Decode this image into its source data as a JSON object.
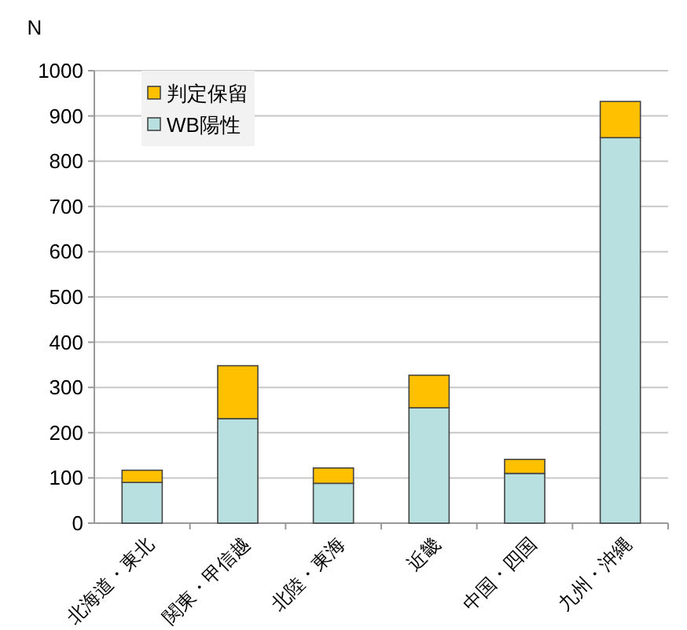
{
  "chart_data": {
    "type": "bar",
    "ylabel": "N",
    "stacked": true,
    "grid": "y",
    "legend": "top left",
    "categories": [
      "北海道・東北",
      "関東・甲信越",
      "北陸・東海",
      "近畿",
      "中国・四国",
      "九州・沖縄"
    ],
    "ylim": [
      0,
      1000
    ],
    "yticks": [
      0,
      100,
      200,
      300,
      400,
      500,
      600,
      700,
      800,
      900,
      1000
    ],
    "series": [
      {
        "name": "WB陽性",
        "color": "#b9e0e0",
        "values": [
          90,
          231,
          88,
          255,
          110,
          852
        ]
      },
      {
        "name": "判定保留",
        "color": "#ffc000",
        "values": [
          27,
          117,
          34,
          72,
          31,
          80
        ]
      }
    ]
  }
}
